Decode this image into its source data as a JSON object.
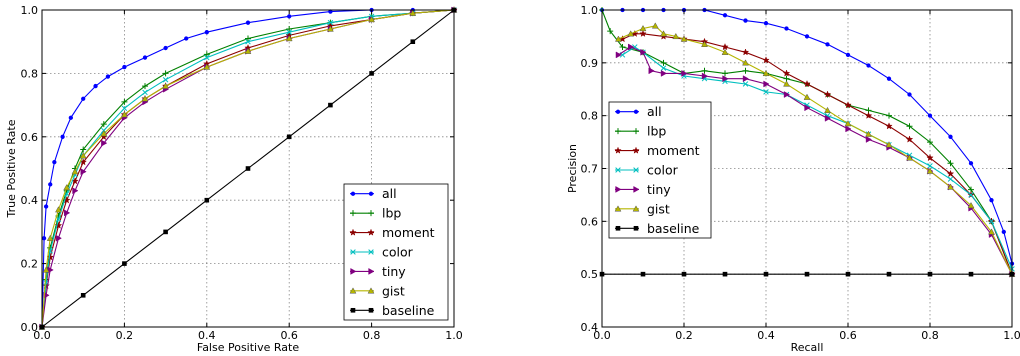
{
  "chart_data": [
    {
      "type": "line",
      "panel": "roc",
      "xlabel": "False Positive Rate",
      "ylabel": "True Positive Rate",
      "xlim": [
        0,
        1
      ],
      "ylim": [
        0,
        1
      ],
      "xticks": [
        "0.0",
        "0.2",
        "0.4",
        "0.6",
        "0.8",
        "1.0"
      ],
      "yticks": [
        "0.0",
        "0.2",
        "0.4",
        "0.6",
        "0.8",
        "1.0"
      ],
      "grid": true,
      "legend_position": "lower-right",
      "series": [
        {
          "name": "all",
          "color": "#0000ff",
          "marker": "dot",
          "x": [
            0,
            0.005,
            0.01,
            0.02,
            0.03,
            0.05,
            0.07,
            0.1,
            0.13,
            0.16,
            0.2,
            0.25,
            0.3,
            0.35,
            0.4,
            0.5,
            0.6,
            0.7,
            0.8,
            0.9,
            1.0
          ],
          "y": [
            0,
            0.28,
            0.38,
            0.45,
            0.52,
            0.6,
            0.66,
            0.72,
            0.76,
            0.79,
            0.82,
            0.85,
            0.88,
            0.91,
            0.93,
            0.96,
            0.98,
            0.995,
            1.0,
            1.0,
            1.0
          ]
        },
        {
          "name": "lbp",
          "color": "#008000",
          "marker": "plus",
          "x": [
            0,
            0.01,
            0.02,
            0.04,
            0.06,
            0.08,
            0.1,
            0.15,
            0.2,
            0.25,
            0.3,
            0.4,
            0.5,
            0.6,
            0.7,
            0.8,
            0.9,
            1.0
          ],
          "y": [
            0,
            0.15,
            0.25,
            0.35,
            0.43,
            0.5,
            0.56,
            0.64,
            0.71,
            0.76,
            0.8,
            0.86,
            0.91,
            0.94,
            0.96,
            0.98,
            0.99,
            1.0
          ]
        },
        {
          "name": "moment",
          "color": "#8b0000",
          "marker": "star",
          "x": [
            0,
            0.01,
            0.02,
            0.04,
            0.06,
            0.08,
            0.1,
            0.15,
            0.2,
            0.25,
            0.3,
            0.4,
            0.5,
            0.6,
            0.7,
            0.8,
            0.9,
            1.0
          ],
          "y": [
            0,
            0.13,
            0.22,
            0.32,
            0.4,
            0.46,
            0.52,
            0.6,
            0.67,
            0.72,
            0.76,
            0.83,
            0.88,
            0.92,
            0.95,
            0.97,
            0.99,
            1.0
          ]
        },
        {
          "name": "color",
          "color": "#00bfbf",
          "marker": "x",
          "x": [
            0,
            0.01,
            0.02,
            0.04,
            0.06,
            0.08,
            0.1,
            0.15,
            0.2,
            0.25,
            0.3,
            0.4,
            0.5,
            0.6,
            0.7,
            0.8,
            0.9,
            1.0
          ],
          "y": [
            0,
            0.14,
            0.24,
            0.34,
            0.42,
            0.48,
            0.54,
            0.62,
            0.69,
            0.74,
            0.78,
            0.85,
            0.9,
            0.93,
            0.96,
            0.98,
            0.99,
            1.0
          ]
        },
        {
          "name": "tiny",
          "color": "#800080",
          "marker": "triangle-right",
          "x": [
            0,
            0.01,
            0.02,
            0.04,
            0.06,
            0.08,
            0.1,
            0.15,
            0.2,
            0.25,
            0.3,
            0.4,
            0.5,
            0.6,
            0.7,
            0.8,
            0.9,
            1.0
          ],
          "y": [
            0,
            0.1,
            0.18,
            0.28,
            0.36,
            0.43,
            0.49,
            0.58,
            0.66,
            0.71,
            0.75,
            0.82,
            0.87,
            0.91,
            0.94,
            0.97,
            0.99,
            1.0
          ]
        },
        {
          "name": "gist",
          "color": "#b5b500",
          "marker": "triangle-up",
          "x": [
            0,
            0.01,
            0.02,
            0.04,
            0.06,
            0.08,
            0.1,
            0.15,
            0.2,
            0.25,
            0.3,
            0.4,
            0.5,
            0.6,
            0.7,
            0.8,
            0.9,
            1.0
          ],
          "y": [
            0,
            0.18,
            0.28,
            0.37,
            0.44,
            0.49,
            0.54,
            0.61,
            0.67,
            0.72,
            0.76,
            0.82,
            0.87,
            0.91,
            0.94,
            0.97,
            0.99,
            1.0
          ]
        },
        {
          "name": "baseline",
          "color": "#000000",
          "marker": "square",
          "x": [
            0,
            0.1,
            0.2,
            0.3,
            0.4,
            0.5,
            0.6,
            0.7,
            0.8,
            0.9,
            1.0
          ],
          "y": [
            0,
            0.1,
            0.2,
            0.3,
            0.4,
            0.5,
            0.6,
            0.7,
            0.8,
            0.9,
            1.0
          ]
        }
      ]
    },
    {
      "type": "line",
      "panel": "pr",
      "xlabel": "Recall",
      "ylabel": "Precision",
      "xlim": [
        0,
        1
      ],
      "ylim": [
        0.4,
        1
      ],
      "xticks": [
        "0.0",
        "0.2",
        "0.4",
        "0.6",
        "0.8",
        "1.0"
      ],
      "yticks": [
        "0.4",
        "0.5",
        "0.6",
        "0.7",
        "0.8",
        "0.9",
        "1.0"
      ],
      "grid": true,
      "legend_position": "center-left",
      "series": [
        {
          "name": "all",
          "color": "#0000ff",
          "marker": "dot",
          "x": [
            0,
            0.05,
            0.1,
            0.15,
            0.2,
            0.25,
            0.3,
            0.35,
            0.4,
            0.45,
            0.5,
            0.55,
            0.6,
            0.65,
            0.7,
            0.75,
            0.8,
            0.85,
            0.9,
            0.95,
            0.98,
            1.0
          ],
          "y": [
            1.0,
            1.0,
            1.0,
            1.0,
            1.0,
            1.0,
            0.99,
            0.98,
            0.975,
            0.965,
            0.95,
            0.935,
            0.915,
            0.895,
            0.87,
            0.84,
            0.8,
            0.76,
            0.71,
            0.64,
            0.58,
            0.52
          ]
        },
        {
          "name": "lbp",
          "color": "#008000",
          "marker": "plus",
          "x": [
            0,
            0.02,
            0.05,
            0.1,
            0.15,
            0.2,
            0.25,
            0.3,
            0.35,
            0.4,
            0.45,
            0.5,
            0.55,
            0.6,
            0.65,
            0.7,
            0.75,
            0.8,
            0.85,
            0.9,
            0.95,
            1.0
          ],
          "y": [
            1.0,
            0.96,
            0.93,
            0.92,
            0.9,
            0.88,
            0.885,
            0.88,
            0.885,
            0.88,
            0.87,
            0.86,
            0.84,
            0.82,
            0.81,
            0.8,
            0.78,
            0.75,
            0.71,
            0.66,
            0.6,
            0.5
          ]
        },
        {
          "name": "moment",
          "color": "#8b0000",
          "marker": "star",
          "x": [
            0.05,
            0.08,
            0.1,
            0.15,
            0.2,
            0.25,
            0.3,
            0.35,
            0.4,
            0.45,
            0.5,
            0.55,
            0.6,
            0.65,
            0.7,
            0.75,
            0.8,
            0.85,
            0.9,
            0.95,
            1.0
          ],
          "y": [
            0.945,
            0.955,
            0.955,
            0.95,
            0.945,
            0.94,
            0.93,
            0.92,
            0.905,
            0.88,
            0.86,
            0.84,
            0.82,
            0.8,
            0.78,
            0.755,
            0.72,
            0.69,
            0.65,
            0.6,
            0.5
          ]
        },
        {
          "name": "color",
          "color": "#00bfbf",
          "marker": "x",
          "x": [
            0.05,
            0.08,
            0.1,
            0.15,
            0.2,
            0.25,
            0.3,
            0.35,
            0.4,
            0.45,
            0.5,
            0.55,
            0.6,
            0.65,
            0.7,
            0.75,
            0.8,
            0.85,
            0.9,
            0.95,
            1.0
          ],
          "y": [
            0.915,
            0.93,
            0.92,
            0.89,
            0.875,
            0.87,
            0.865,
            0.86,
            0.845,
            0.84,
            0.82,
            0.8,
            0.785,
            0.765,
            0.745,
            0.725,
            0.705,
            0.68,
            0.65,
            0.6,
            0.51
          ]
        },
        {
          "name": "tiny",
          "color": "#800080",
          "marker": "triangle-right",
          "x": [
            0.04,
            0.07,
            0.1,
            0.12,
            0.15,
            0.2,
            0.25,
            0.3,
            0.35,
            0.4,
            0.45,
            0.5,
            0.55,
            0.6,
            0.65,
            0.7,
            0.75,
            0.8,
            0.85,
            0.9,
            0.95,
            1.0
          ],
          "y": [
            0.915,
            0.93,
            0.92,
            0.885,
            0.88,
            0.88,
            0.875,
            0.87,
            0.87,
            0.86,
            0.84,
            0.815,
            0.795,
            0.775,
            0.755,
            0.74,
            0.72,
            0.695,
            0.665,
            0.625,
            0.575,
            0.5
          ]
        },
        {
          "name": "gist",
          "color": "#b5b500",
          "marker": "triangle-up",
          "x": [
            0.04,
            0.07,
            0.1,
            0.13,
            0.15,
            0.18,
            0.2,
            0.25,
            0.3,
            0.35,
            0.4,
            0.45,
            0.5,
            0.55,
            0.6,
            0.65,
            0.7,
            0.75,
            0.8,
            0.85,
            0.9,
            0.95,
            1.0
          ],
          "y": [
            0.945,
            0.955,
            0.965,
            0.97,
            0.955,
            0.95,
            0.945,
            0.935,
            0.92,
            0.9,
            0.88,
            0.86,
            0.835,
            0.81,
            0.785,
            0.765,
            0.745,
            0.72,
            0.695,
            0.665,
            0.63,
            0.58,
            0.5
          ]
        },
        {
          "name": "baseline",
          "color": "#000000",
          "marker": "square",
          "x": [
            0,
            0.1,
            0.2,
            0.3,
            0.4,
            0.5,
            0.6,
            0.7,
            0.8,
            0.9,
            1.0
          ],
          "y": [
            0.5,
            0.5,
            0.5,
            0.5,
            0.5,
            0.5,
            0.5,
            0.5,
            0.5,
            0.5,
            0.5
          ]
        }
      ]
    }
  ]
}
